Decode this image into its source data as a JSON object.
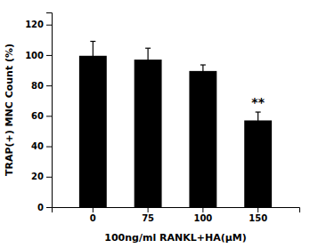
{
  "chart_data": {
    "type": "bar",
    "categories": [
      "0",
      "75",
      "100",
      "150"
    ],
    "values": [
      99.5,
      97.0,
      89.5,
      57.0
    ],
    "errors": [
      9.5,
      7.5,
      4.0,
      5.5
    ],
    "color": "#000000",
    "xlabel": "100ng/ml RANKL+HA(μM)",
    "ylabel": "TRAP(+) MNC Count (%)",
    "ylim": [
      0,
      128
    ],
    "yticks": [
      0,
      20,
      40,
      60,
      80,
      100,
      120
    ],
    "annotations": [
      {
        "text": "**",
        "category": "150"
      }
    ],
    "grid": false
  }
}
